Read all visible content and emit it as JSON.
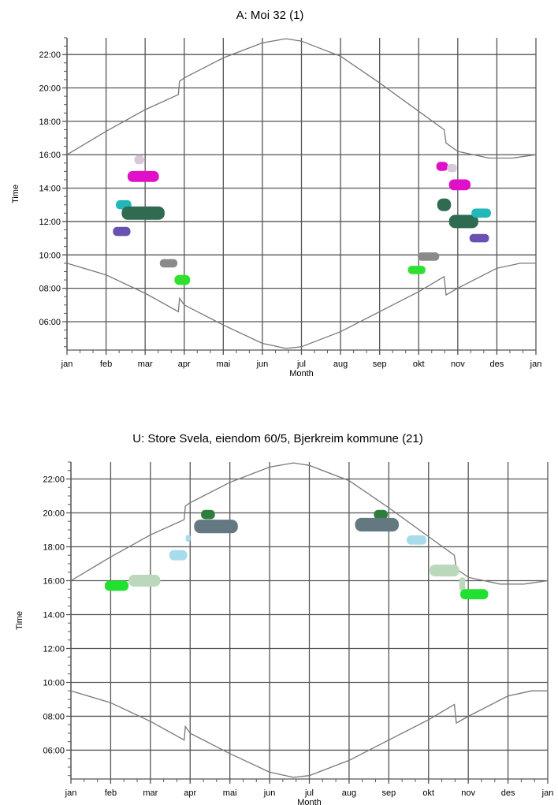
{
  "chart_data": [
    {
      "type": "scatter",
      "title": "A: Moi 32 (1)",
      "xlabel": "Month",
      "ylabel": "Time",
      "x_ticks": [
        "jan",
        "feb",
        "mar",
        "apr",
        "mai",
        "jun",
        "jul",
        "aug",
        "sep",
        "okt",
        "nov",
        "des",
        "jan"
      ],
      "y_ticks": [
        "06:00",
        "08:00",
        "10:00",
        "12:00",
        "14:00",
        "16:00",
        "18:00",
        "20:00",
        "22:00"
      ],
      "xlim": [
        0,
        12
      ],
      "ylim": [
        4.3,
        23.0
      ],
      "grid": true,
      "sun_lines": {
        "sunset": [
          [
            0,
            16.0
          ],
          [
            1,
            17.4
          ],
          [
            2,
            18.7
          ],
          [
            2.85,
            19.6
          ],
          [
            2.88,
            20.4
          ],
          [
            3,
            20.6
          ],
          [
            4,
            21.8
          ],
          [
            5,
            22.7
          ],
          [
            5.6,
            22.95
          ],
          [
            6,
            22.8
          ],
          [
            7,
            21.9
          ],
          [
            8,
            20.3
          ],
          [
            9,
            18.6
          ],
          [
            9.65,
            17.5
          ],
          [
            9.7,
            16.7
          ],
          [
            10,
            16.2
          ],
          [
            10.8,
            15.8
          ],
          [
            11.4,
            15.8
          ],
          [
            12,
            16.0
          ]
        ],
        "sunrise": [
          [
            0,
            9.5
          ],
          [
            1,
            8.8
          ],
          [
            2,
            7.7
          ],
          [
            2.85,
            6.6
          ],
          [
            2.88,
            7.4
          ],
          [
            3,
            7.0
          ],
          [
            4,
            5.8
          ],
          [
            5,
            4.7
          ],
          [
            5.6,
            4.4
          ],
          [
            6,
            4.5
          ],
          [
            7,
            5.4
          ],
          [
            8,
            6.6
          ],
          [
            9,
            7.8
          ],
          [
            9.65,
            8.7
          ],
          [
            9.7,
            7.6
          ],
          [
            10,
            8.0
          ],
          [
            11,
            9.2
          ],
          [
            11.6,
            9.5
          ],
          [
            12,
            9.5
          ]
        ]
      },
      "events": [
        {
          "month": 1.85,
          "time": 15.7,
          "width": 0.25,
          "height": 0.55,
          "color": "#d8c8d8"
        },
        {
          "month": 1.95,
          "time": 14.7,
          "width": 0.8,
          "height": 0.65,
          "color": "#e010c8"
        },
        {
          "month": 1.45,
          "time": 13.0,
          "width": 0.4,
          "height": 0.55,
          "color": "#20b8b8"
        },
        {
          "month": 1.95,
          "time": 12.5,
          "width": 1.1,
          "height": 0.8,
          "color": "#2e6b50"
        },
        {
          "month": 1.4,
          "time": 11.4,
          "width": 0.45,
          "height": 0.55,
          "color": "#6a50b0"
        },
        {
          "month": 2.6,
          "time": 9.5,
          "width": 0.45,
          "height": 0.5,
          "color": "#8a8a8a"
        },
        {
          "month": 2.95,
          "time": 8.5,
          "width": 0.4,
          "height": 0.6,
          "color": "#30e030"
        },
        {
          "month": 9.6,
          "time": 15.3,
          "width": 0.3,
          "height": 0.55,
          "color": "#e010c8"
        },
        {
          "month": 9.85,
          "time": 15.2,
          "width": 0.25,
          "height": 0.5,
          "color": "#d8c8d8"
        },
        {
          "month": 10.05,
          "time": 14.2,
          "width": 0.55,
          "height": 0.65,
          "color": "#e010c8"
        },
        {
          "month": 9.65,
          "time": 13.0,
          "width": 0.35,
          "height": 0.75,
          "color": "#2e6b50"
        },
        {
          "month": 10.15,
          "time": 12.0,
          "width": 0.75,
          "height": 0.8,
          "color": "#2e6b50"
        },
        {
          "month": 10.6,
          "time": 12.5,
          "width": 0.5,
          "height": 0.55,
          "color": "#20b8b8"
        },
        {
          "month": 10.55,
          "time": 11.0,
          "width": 0.5,
          "height": 0.5,
          "color": "#6a50b0"
        },
        {
          "month": 9.25,
          "time": 9.9,
          "width": 0.55,
          "height": 0.5,
          "color": "#8a8a8a"
        },
        {
          "month": 8.95,
          "time": 9.1,
          "width": 0.45,
          "height": 0.5,
          "color": "#30e030"
        }
      ]
    },
    {
      "type": "scatter",
      "title": "U: Store Svela, eiendom 60/5, Bjerkreim kommune (21)",
      "xlabel": "Month",
      "ylabel": "Time",
      "x_ticks": [
        "jan",
        "feb",
        "mar",
        "apr",
        "mai",
        "jun",
        "jul",
        "aug",
        "sep",
        "okt",
        "nov",
        "des",
        "jan"
      ],
      "y_ticks": [
        "06:00",
        "08:00",
        "10:00",
        "12:00",
        "14:00",
        "16:00",
        "18:00",
        "20:00",
        "22:00"
      ],
      "xlim": [
        0,
        12
      ],
      "ylim": [
        4.3,
        23.0
      ],
      "grid": true,
      "sun_lines": {
        "sunset": [
          [
            0,
            16.0
          ],
          [
            1,
            17.4
          ],
          [
            2,
            18.7
          ],
          [
            2.85,
            19.6
          ],
          [
            2.88,
            20.4
          ],
          [
            3,
            20.6
          ],
          [
            4,
            21.8
          ],
          [
            5,
            22.7
          ],
          [
            5.6,
            22.95
          ],
          [
            6,
            22.8
          ],
          [
            7,
            21.9
          ],
          [
            8,
            20.3
          ],
          [
            9,
            18.6
          ],
          [
            9.65,
            17.5
          ],
          [
            9.7,
            16.7
          ],
          [
            10,
            16.2
          ],
          [
            10.8,
            15.8
          ],
          [
            11.4,
            15.8
          ],
          [
            12,
            16.0
          ]
        ],
        "sunrise": [
          [
            0,
            9.5
          ],
          [
            1,
            8.8
          ],
          [
            2,
            7.7
          ],
          [
            2.85,
            6.6
          ],
          [
            2.88,
            7.4
          ],
          [
            3,
            7.0
          ],
          [
            4,
            5.8
          ],
          [
            5,
            4.7
          ],
          [
            5.6,
            4.4
          ],
          [
            6,
            4.5
          ],
          [
            7,
            5.4
          ],
          [
            8,
            6.6
          ],
          [
            9,
            7.8
          ],
          [
            9.65,
            8.7
          ],
          [
            9.7,
            7.6
          ],
          [
            10,
            8.0
          ],
          [
            11,
            9.2
          ],
          [
            11.6,
            9.5
          ],
          [
            12,
            9.5
          ]
        ]
      },
      "events": [
        {
          "month": 1.15,
          "time": 15.7,
          "width": 0.6,
          "height": 0.6,
          "color": "#20e030"
        },
        {
          "month": 1.85,
          "time": 16.0,
          "width": 0.8,
          "height": 0.7,
          "color": "#bcd8bc"
        },
        {
          "month": 2.7,
          "time": 17.5,
          "width": 0.45,
          "height": 0.6,
          "color": "#a8dcec"
        },
        {
          "month": 2.95,
          "time": 18.5,
          "width": 0.12,
          "height": 0.4,
          "color": "#a8dcec"
        },
        {
          "month": 3.45,
          "time": 19.9,
          "width": 0.35,
          "height": 0.55,
          "color": "#2e7d3a"
        },
        {
          "month": 3.65,
          "time": 19.2,
          "width": 1.1,
          "height": 0.8,
          "color": "#637880"
        },
        {
          "month": 7.8,
          "time": 19.9,
          "width": 0.35,
          "height": 0.55,
          "color": "#2e7d3a"
        },
        {
          "month": 7.7,
          "time": 19.3,
          "width": 1.1,
          "height": 0.8,
          "color": "#637880"
        },
        {
          "month": 8.7,
          "time": 18.4,
          "width": 0.5,
          "height": 0.55,
          "color": "#a8dcec"
        },
        {
          "month": 9.4,
          "time": 16.6,
          "width": 0.75,
          "height": 0.7,
          "color": "#bcd8bc"
        },
        {
          "month": 9.85,
          "time": 15.8,
          "width": 0.15,
          "height": 0.8,
          "color": "#bcd8bc"
        },
        {
          "month": 10.15,
          "time": 15.2,
          "width": 0.7,
          "height": 0.6,
          "color": "#20e030"
        }
      ]
    }
  ]
}
